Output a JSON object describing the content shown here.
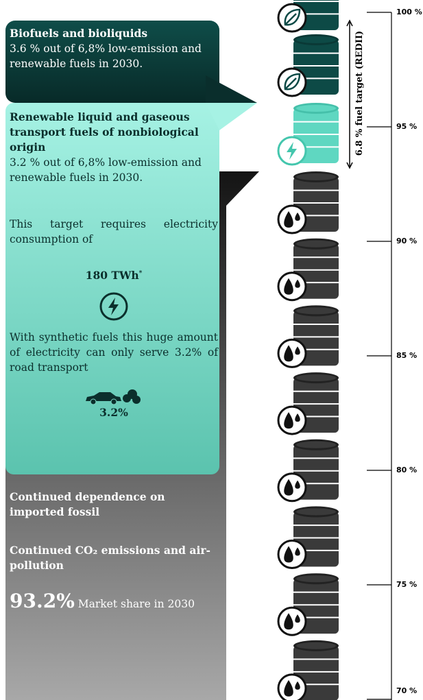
{
  "panels": {
    "biofuels": {
      "title": "Biofuels and bioliquids",
      "text": "3.6 % out of 6,8% low-emission and renewable fuels in 2030."
    },
    "rfnbo": {
      "title": "Renewable liquid and gaseous transport fuels of nonbiological  origin",
      "text": "3.2 % out of 6,8% low-emission and renewable fuels in 2030.",
      "requirement": "This target requires electricity consumption of",
      "amount": "180 TWh",
      "amount_note": "*",
      "synthetic": "With synthetic fuels this huge amount of electricity can only serve 3.2% of road transport",
      "share": "3.2%"
    },
    "fossil": {
      "point1": "Continued dependence on imported fossil",
      "point2": "Continued CO₂ emissions and air-pollution",
      "share": "93.2%",
      "share_text": "Market share in 2030"
    }
  },
  "target_label": "6.8 % fuel target (REDII)",
  "scale": [
    "100 %",
    "95 %",
    "90 %",
    "85 %",
    "80 %",
    "75 %",
    "70 %"
  ]
}
